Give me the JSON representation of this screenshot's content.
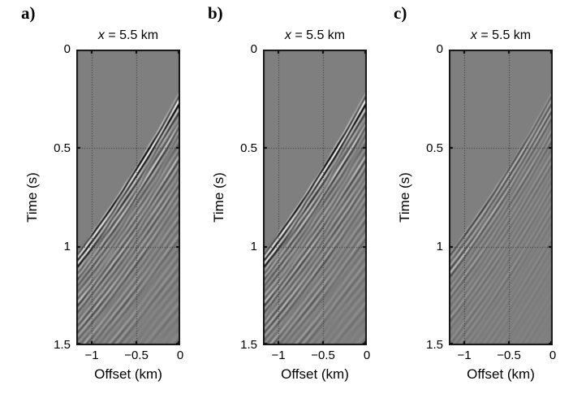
{
  "figure": {
    "background": "#ffffff",
    "plot_background_gray": "#7f7f7f",
    "ink_color": "#000000",
    "grid_style": "dotted"
  },
  "chart_data": {
    "type": "heatmap",
    "description": "Three grayscale seismic shot-gather panels (a, b, c), each titled x = 5.5 km. Offset (km) on the x-axis from about -1.175 to 0, Time (s) on the y-axis from 0 to 1.5. A fan of dipping black/white reflection events starts at about 0.2 s at zero offset and moves out to about 1.0 s at -1 km; above the first arrival the image is uniform gray. Panels a and b are nearly identical high-amplitude gathers; panel c shows the same geometry with much weaker, more linear events.",
    "shared": {
      "title": "x = 5.5 km",
      "title_italic": "x",
      "title_rest": " = 5.5 km",
      "xlabel": "Offset (km)",
      "ylabel": "Time (s)",
      "xlim": [
        -1.175,
        0
      ],
      "tlim": [
        0,
        1.5
      ],
      "xticks": [
        -1,
        -0.5,
        0
      ],
      "xtick_labels": [
        "−1",
        "−0.5",
        "0"
      ],
      "yticks": [
        0,
        0.5,
        1,
        1.5
      ],
      "ytick_labels": [
        "0",
        "0.5",
        "1",
        "1.5"
      ],
      "grid_x": [
        -1,
        -0.5
      ],
      "grid_t": [
        0.5,
        1
      ],
      "first_arrival": {
        "t0_s": 0.2,
        "slope_s_per_km": 0.82,
        "quad": -0.1
      }
    },
    "panels": [
      {
        "letter": "a)",
        "render": {
          "amp": 1.05,
          "flatten": 0.3,
          "decay": 2.1,
          "floor": 0.13,
          "freq": 26,
          "chirp": 3.2,
          "seed": 7,
          "sec": 0.28,
          "noise": 0.1
        }
      },
      {
        "letter": "b)",
        "render": {
          "amp": 1.05,
          "flatten": 0.3,
          "decay": 2.1,
          "floor": 0.13,
          "freq": 26,
          "chirp": 3.2,
          "seed": 7,
          "sec": 0.28,
          "noise": 0.1
        }
      },
      {
        "letter": "c)",
        "render": {
          "amp": 0.62,
          "flatten": 0.05,
          "decay": 2.6,
          "floor": 0.05,
          "freq": 27,
          "chirp": 3.0,
          "seed": 23,
          "sec": 0.18,
          "noise": 0.04
        }
      }
    ]
  }
}
